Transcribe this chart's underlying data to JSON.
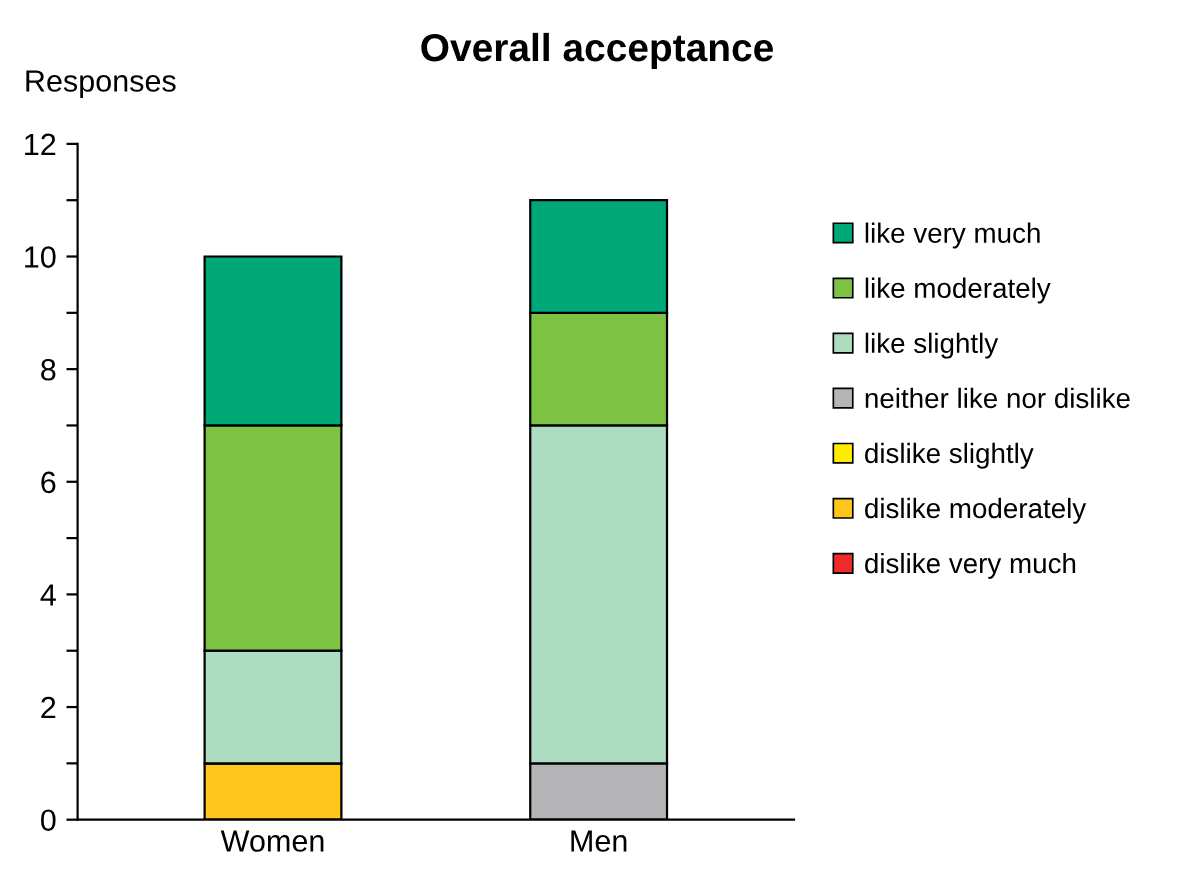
{
  "chart_data": {
    "type": "bar",
    "title": "Overall acceptance",
    "ylabel": "Responses",
    "categories": [
      "Women",
      "Men"
    ],
    "stacked": true,
    "series": [
      {
        "name": "dislike very much",
        "color": "#ee2a2a",
        "values": [
          0,
          0
        ]
      },
      {
        "name": "dislike moderately",
        "color": "#ffc61e",
        "values": [
          1,
          0
        ]
      },
      {
        "name": "dislike slightly",
        "color": "#ffed00",
        "values": [
          0,
          0
        ]
      },
      {
        "name": "neither like nor dislike",
        "color": "#b5b5b8",
        "values": [
          0,
          1
        ]
      },
      {
        "name": "like slightly",
        "color": "#addcc0",
        "values": [
          2,
          6
        ]
      },
      {
        "name": "like moderately",
        "color": "#7dc243",
        "values": [
          4,
          2
        ]
      },
      {
        "name": "like very much",
        "color": "#00a878",
        "values": [
          3,
          2
        ]
      }
    ],
    "ylim": [
      0,
      12
    ],
    "yticks": [
      0,
      {
        "value": 1,
        "label": null
      },
      2,
      {
        "value": 3,
        "label": null
      },
      4,
      {
        "value": 5,
        "label": null
      },
      6,
      {
        "value": 7,
        "label": null
      },
      8,
      {
        "value": 9,
        "label": null
      },
      10,
      {
        "value": 11,
        "label": null
      },
      12
    ],
    "grid": false,
    "legend": "right"
  }
}
